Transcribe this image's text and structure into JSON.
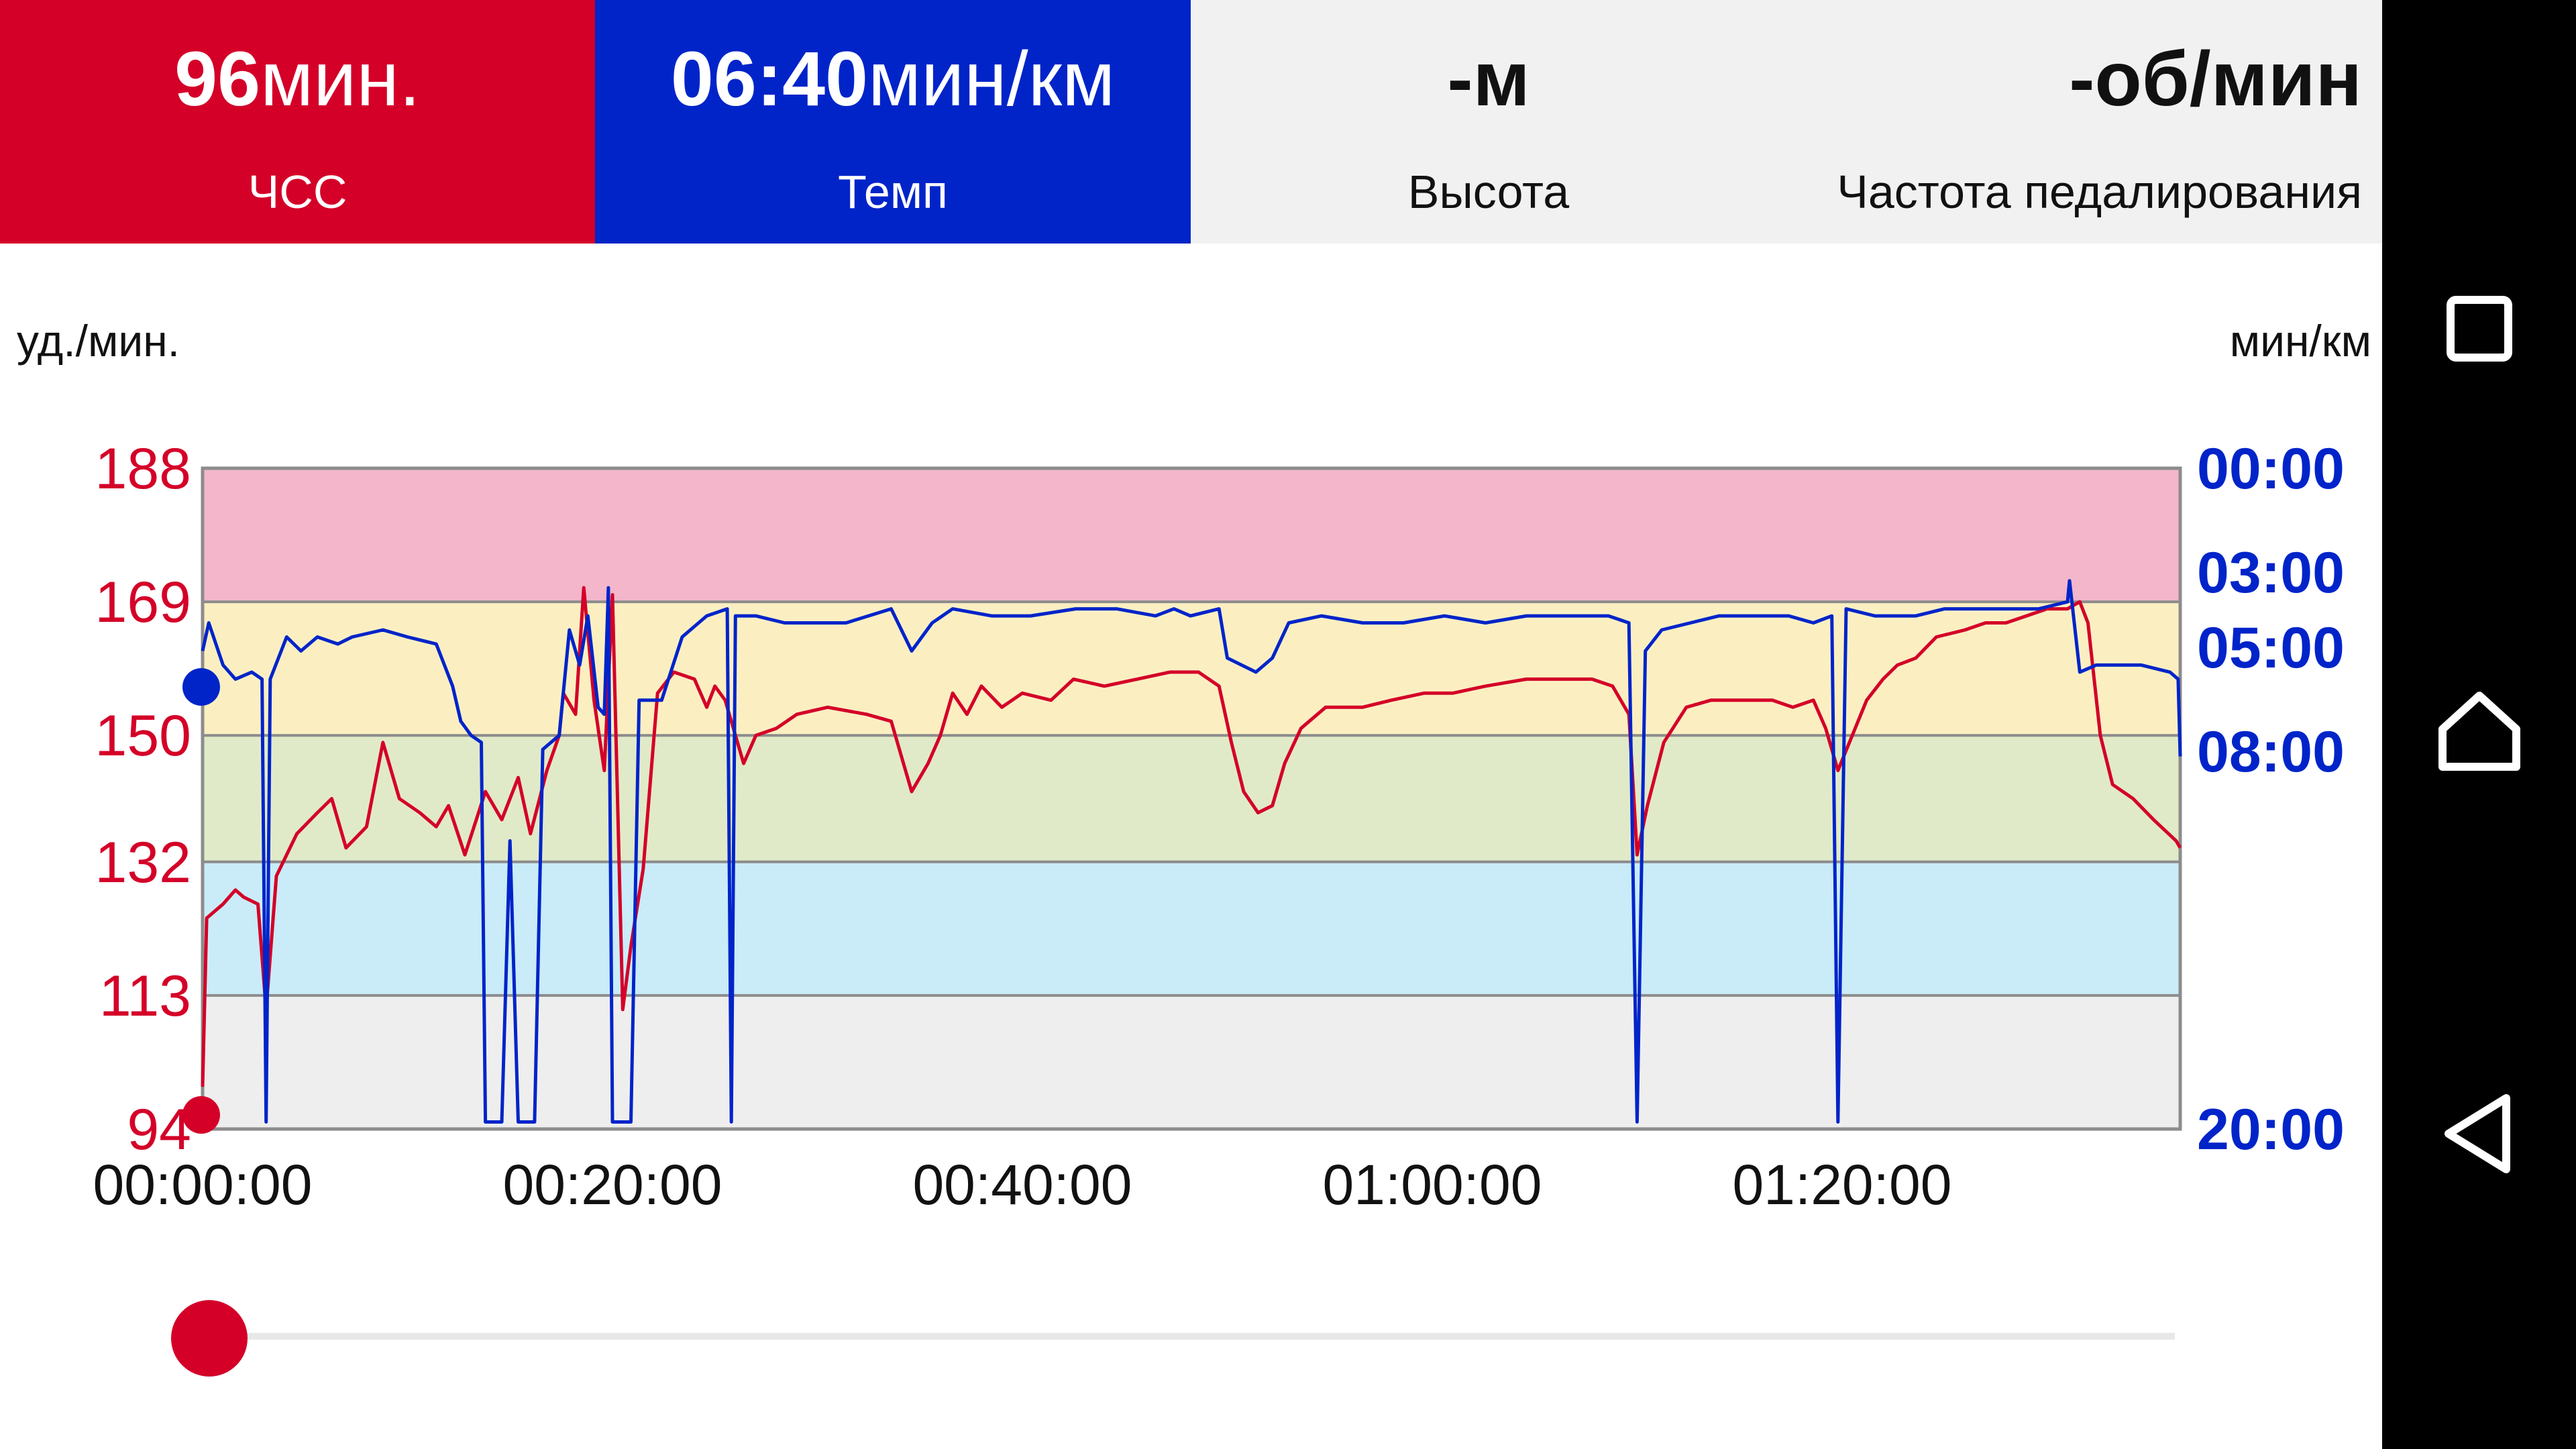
{
  "tiles": {
    "hr": {
      "value_num": "96",
      "value_unit": "мин.",
      "label": "ЧСС",
      "color": "#d40028"
    },
    "pace": {
      "value_num": "06:40",
      "value_unit": "мин/км",
      "label": "Темп",
      "color": "#0124c9"
    },
    "altitude": {
      "value": "-м",
      "label": "Высота"
    },
    "cadence": {
      "value": "-об/мин",
      "label": "Частота педалирования"
    }
  },
  "units": {
    "left": "уд./мин.",
    "right": "мин/км"
  },
  "chart_data": {
    "type": "line",
    "x_ticks": [
      "00:00:00",
      "00:20:00",
      "00:40:00",
      "01:00:00",
      "01:20:00"
    ],
    "x_range_minutes": [
      0,
      96.5
    ],
    "y_left_ticks": [
      "188",
      "169",
      "150",
      "132",
      "113",
      "94"
    ],
    "y_left_range": [
      94,
      188
    ],
    "y_right_ticks": [
      "00:00",
      "03:00",
      "05:00",
      "08:00",
      "20:00"
    ],
    "zones": [
      {
        "from": 169,
        "to": 188,
        "color": "#f3b6cb"
      },
      {
        "from": 150,
        "to": 169,
        "color": "#fbefc2"
      },
      {
        "from": 132,
        "to": 150,
        "color": "#e1eac8"
      },
      {
        "from": 113,
        "to": 132,
        "color": "#c9ecf8"
      },
      {
        "from": 94,
        "to": 113,
        "color": "#eeeeee"
      }
    ],
    "series": [
      {
        "color": "#d40028",
        "points": [
          [
            0,
            100
          ],
          [
            0.2,
            124
          ],
          [
            1,
            126
          ],
          [
            1.6,
            128
          ],
          [
            2,
            127
          ],
          [
            2.7,
            126
          ],
          [
            3.1,
            111
          ],
          [
            3.6,
            130
          ],
          [
            4.6,
            136
          ],
          [
            5.6,
            139
          ],
          [
            6.3,
            141
          ],
          [
            7,
            134
          ],
          [
            8,
            137
          ],
          [
            8.8,
            149
          ],
          [
            9.6,
            141
          ],
          [
            10.6,
            139
          ],
          [
            11.4,
            137
          ],
          [
            12,
            140
          ],
          [
            12.8,
            133
          ],
          [
            13.8,
            142
          ],
          [
            14.6,
            138
          ],
          [
            15.4,
            144
          ],
          [
            16,
            136
          ],
          [
            16.8,
            145
          ],
          [
            17.4,
            150
          ],
          [
            17.6,
            156
          ],
          [
            18.2,
            153
          ],
          [
            18.6,
            171
          ],
          [
            19.1,
            155
          ],
          [
            19.6,
            145
          ],
          [
            20,
            170
          ],
          [
            20.5,
            111
          ],
          [
            20.9,
            120
          ],
          [
            21.5,
            131
          ],
          [
            22.2,
            156
          ],
          [
            23,
            159
          ],
          [
            24,
            158
          ],
          [
            24.6,
            154
          ],
          [
            25,
            157
          ],
          [
            25.5,
            155
          ],
          [
            26,
            150
          ],
          [
            26.4,
            146
          ],
          [
            27,
            150
          ],
          [
            28,
            151
          ],
          [
            29,
            153
          ],
          [
            30.5,
            154
          ],
          [
            32.4,
            153
          ],
          [
            33.6,
            152
          ],
          [
            34.6,
            142
          ],
          [
            35.4,
            146
          ],
          [
            36,
            150
          ],
          [
            36.6,
            156
          ],
          [
            37.3,
            153
          ],
          [
            38,
            157
          ],
          [
            39,
            154
          ],
          [
            40,
            156
          ],
          [
            41.4,
            155
          ],
          [
            42.5,
            158
          ],
          [
            44,
            157
          ],
          [
            45.6,
            158
          ],
          [
            47.2,
            159
          ],
          [
            48.6,
            159
          ],
          [
            49.6,
            157
          ],
          [
            50.2,
            149
          ],
          [
            50.8,
            142
          ],
          [
            51.5,
            139
          ],
          [
            52.2,
            140
          ],
          [
            52.8,
            146
          ],
          [
            53.6,
            151
          ],
          [
            54.8,
            154
          ],
          [
            56.6,
            154
          ],
          [
            58,
            155
          ],
          [
            59.6,
            156
          ],
          [
            61,
            156
          ],
          [
            62.6,
            157
          ],
          [
            64.6,
            158
          ],
          [
            66.4,
            158
          ],
          [
            67.8,
            158
          ],
          [
            68.8,
            157
          ],
          [
            69.6,
            153
          ],
          [
            70,
            133
          ],
          [
            70.5,
            140
          ],
          [
            71.3,
            149
          ],
          [
            72.4,
            154
          ],
          [
            73.6,
            155
          ],
          [
            75,
            155
          ],
          [
            76.6,
            155
          ],
          [
            77.6,
            154
          ],
          [
            78.6,
            155
          ],
          [
            79.2,
            151
          ],
          [
            79.8,
            145
          ],
          [
            80.5,
            150
          ],
          [
            81.2,
            155
          ],
          [
            82,
            158
          ],
          [
            82.7,
            160
          ],
          [
            83.6,
            161
          ],
          [
            84.6,
            164
          ],
          [
            86,
            165
          ],
          [
            87,
            166
          ],
          [
            88,
            166
          ],
          [
            89,
            167
          ],
          [
            90,
            168
          ],
          [
            91,
            168
          ],
          [
            91.6,
            169
          ],
          [
            92,
            166
          ],
          [
            92.6,
            150
          ],
          [
            93.2,
            143
          ],
          [
            94.2,
            141
          ],
          [
            95.2,
            138
          ],
          [
            96.3,
            135
          ],
          [
            96.5,
            134
          ]
        ]
      },
      {
        "color": "#0124c9",
        "points": [
          [
            0,
            162
          ],
          [
            0.3,
            166
          ],
          [
            1,
            160
          ],
          [
            1.6,
            158
          ],
          [
            2.4,
            159
          ],
          [
            2.9,
            158
          ],
          [
            3.1,
            95
          ],
          [
            3.3,
            158
          ],
          [
            4.1,
            164
          ],
          [
            4.8,
            162
          ],
          [
            5.6,
            164
          ],
          [
            6.6,
            163
          ],
          [
            7.3,
            164
          ],
          [
            8.8,
            165
          ],
          [
            10,
            164
          ],
          [
            11.4,
            163
          ],
          [
            12.2,
            157
          ],
          [
            12.6,
            152
          ],
          [
            13.1,
            150
          ],
          [
            13.6,
            149
          ],
          [
            13.8,
            95
          ],
          [
            14.6,
            95
          ],
          [
            15,
            135
          ],
          [
            15.4,
            95
          ],
          [
            16.2,
            95
          ],
          [
            16.6,
            148
          ],
          [
            17.4,
            150
          ],
          [
            17.9,
            165
          ],
          [
            18.4,
            160
          ],
          [
            18.8,
            167
          ],
          [
            19.3,
            154
          ],
          [
            19.6,
            153
          ],
          [
            19.8,
            171
          ],
          [
            20,
            95
          ],
          [
            20.9,
            95
          ],
          [
            21.3,
            155
          ],
          [
            22.4,
            155
          ],
          [
            23.4,
            164
          ],
          [
            24.6,
            167
          ],
          [
            25.6,
            168
          ],
          [
            25.8,
            95
          ],
          [
            26,
            167
          ],
          [
            27,
            167
          ],
          [
            28.4,
            166
          ],
          [
            31.4,
            166
          ],
          [
            33.6,
            168
          ],
          [
            34.6,
            162
          ],
          [
            35.6,
            166
          ],
          [
            36.6,
            168
          ],
          [
            38.5,
            167
          ],
          [
            40.4,
            167
          ],
          [
            42.6,
            168
          ],
          [
            44.6,
            168
          ],
          [
            46.5,
            167
          ],
          [
            47.4,
            168
          ],
          [
            48.2,
            167
          ],
          [
            49.6,
            168
          ],
          [
            50,
            161
          ],
          [
            51.4,
            159
          ],
          [
            52.2,
            161
          ],
          [
            53,
            166
          ],
          [
            54.6,
            167
          ],
          [
            56.6,
            166
          ],
          [
            58.6,
            166
          ],
          [
            60.6,
            167
          ],
          [
            62.6,
            166
          ],
          [
            64.6,
            167
          ],
          [
            66.6,
            167
          ],
          [
            68.6,
            167
          ],
          [
            69.6,
            166
          ],
          [
            70,
            95
          ],
          [
            70.4,
            162
          ],
          [
            71.2,
            165
          ],
          [
            72.6,
            166
          ],
          [
            74,
            167
          ],
          [
            75.6,
            167
          ],
          [
            77.4,
            167
          ],
          [
            78.6,
            166
          ],
          [
            79.5,
            167
          ],
          [
            79.8,
            95
          ],
          [
            80.2,
            168
          ],
          [
            81.6,
            167
          ],
          [
            83.6,
            167
          ],
          [
            85,
            168
          ],
          [
            86.6,
            168
          ],
          [
            88,
            168
          ],
          [
            89.6,
            168
          ],
          [
            91,
            169
          ],
          [
            91.1,
            172
          ],
          [
            91.6,
            159
          ],
          [
            92.4,
            160
          ],
          [
            93.6,
            160
          ],
          [
            94.6,
            160
          ],
          [
            96,
            159
          ],
          [
            96.4,
            158
          ],
          [
            96.5,
            147
          ]
        ]
      }
    ]
  },
  "nav": [
    "square-icon",
    "home-icon",
    "back-icon"
  ]
}
